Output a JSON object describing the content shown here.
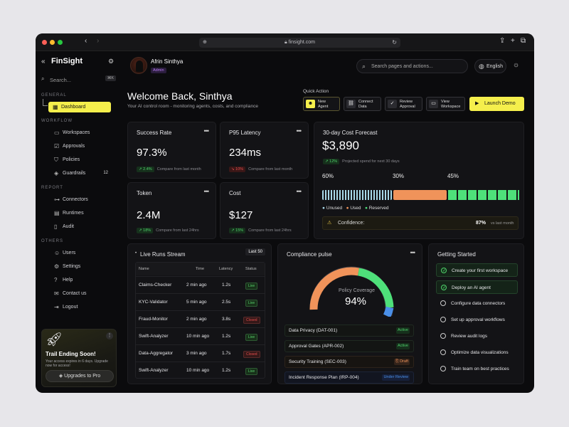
{
  "browser": {
    "url": "finsight.com"
  },
  "app": {
    "name": "FinSight",
    "search_placeholder": "Search...",
    "search_shortcut": "⌘K"
  },
  "sidebar": {
    "general_label": "GENERAL",
    "workflow_label": "WORKFLOW",
    "report_label": "REPORT",
    "others_label": "OTHERS",
    "items": {
      "dashboard": "Dashboard",
      "workspaces": "Workspaces",
      "approvals": "Approvals",
      "policies": "Policies",
      "guardrails": "Guardrails",
      "guardrails_count": "12",
      "connectors": "Connectors",
      "runtimes": "Runtimes",
      "audit": "Audit",
      "users": "Users",
      "settings": "Settings",
      "help": "Help",
      "contact": "Contact us",
      "logout": "Logout"
    },
    "trial": {
      "title": "Trail Ending Soon!",
      "text": "Your access expires in 6 days. Upgrade now for access!",
      "button": "Upgrades to Pro"
    }
  },
  "header": {
    "user_name": "Afrin Sinthya",
    "user_role": "Admin",
    "search_placeholder": "Search pages and actions...",
    "language": "English"
  },
  "welcome": {
    "title": "Welcome Back, Sinthya",
    "subtitle": "Your AI control room - monitoring agents, costs, and compliance"
  },
  "quick_action": {
    "label": "Quick Action",
    "buttons": [
      {
        "line1": "New",
        "line2": "Agent"
      },
      {
        "line1": "Connect",
        "line2": "Data"
      },
      {
        "line1": "Review",
        "line2": "Approval"
      },
      {
        "line1": "View",
        "line2": "Workspace"
      }
    ],
    "launch": "Launch Demo"
  },
  "metrics": {
    "success": {
      "title": "Success Rate",
      "value": "97.3%",
      "delta": "2.4%",
      "compare": "Compare from last month"
    },
    "latency": {
      "title": "P95 Latency",
      "value": "234ms",
      "delta": "10%",
      "compare": "Compare from last month"
    },
    "token": {
      "title": "Token",
      "value": "2.4M",
      "delta": "18%",
      "compare": "Compare from last 24hrs"
    },
    "cost": {
      "title": "Cost",
      "value": "$127",
      "delta": "15%",
      "compare": "Compare from last 24hrs"
    }
  },
  "forecast": {
    "title": "30-day Cost Forecast",
    "value": "$3,890",
    "delta": "12%",
    "note": "Projected spend for next 30 days",
    "segments": [
      {
        "label": "Unused",
        "pct": "60%",
        "share": 0.6,
        "color": "#a8d8e8"
      },
      {
        "label": "Used",
        "pct": "30%",
        "share": 0.3,
        "color": "#f0935a"
      },
      {
        "label": "Reserved",
        "pct": "45%",
        "share": 0.45,
        "color": "#4ee07a"
      }
    ],
    "confidence_label": "Confidence:",
    "confidence_value": "87%",
    "confidence_note": "vs last month"
  },
  "runs": {
    "title": "Live Runs Stream",
    "filter": "Last 50",
    "columns": [
      "Name",
      "Time",
      "Latency",
      "Status"
    ],
    "rows": [
      {
        "name": "Claims-Checker",
        "time": "2 min ago",
        "latency": "1.2s",
        "status": "Live"
      },
      {
        "name": "KYC-Validator",
        "time": "5 min ago",
        "latency": "2.5s",
        "status": "Live"
      },
      {
        "name": "Fraud-Monitor",
        "time": "2 min ago",
        "latency": "3.8s",
        "status": "Closed"
      },
      {
        "name": "Swift-Analyzer",
        "time": "10 min ago",
        "latency": "1.2s",
        "status": "Live"
      },
      {
        "name": "Data-Aggregator",
        "time": "3 min ago",
        "latency": "1.7s",
        "status": "Closed"
      },
      {
        "name": "Swift-Analyzer",
        "time": "10 min ago",
        "latency": "1.2s",
        "status": "Live"
      }
    ]
  },
  "compliance": {
    "title": "Compliance pulse",
    "gauge_label": "Policy Coverage",
    "gauge_value": "94%",
    "policies": [
      {
        "name": "Data Privacy (DAT-001)",
        "tag": "Active",
        "color": "#4fd16a"
      },
      {
        "name": "Approval Gates (APR-002)",
        "tag": "Active",
        "color": "#4fd16a"
      },
      {
        "name": "Security Training (SEC-003)",
        "tag": "Draft",
        "color": "#f0935a"
      },
      {
        "name": "Incident Response Plan (IRP-004)",
        "tag": "Under Review",
        "color": "#4a8fe8"
      }
    ]
  },
  "getting_started": {
    "title": "Getting Started",
    "items": [
      {
        "label": "Create your first workspace",
        "done": true
      },
      {
        "label": "Deploy an AI agent",
        "done": true
      },
      {
        "label": "Configure data connectors",
        "done": false
      },
      {
        "label": "Set up approval workflows",
        "done": false
      },
      {
        "label": "Review audit logs",
        "done": false
      },
      {
        "label": "Optimize data visualizations",
        "done": false
      },
      {
        "label": "Train team on best practices",
        "done": false
      }
    ]
  }
}
